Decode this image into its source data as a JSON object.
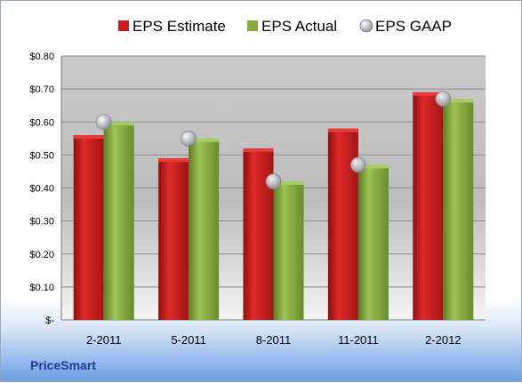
{
  "company": "PriceSmart",
  "chart_data": {
    "type": "bar",
    "categories": [
      "2-2011",
      "5-2011",
      "8-2011",
      "11-2011",
      "2-2012"
    ],
    "series": [
      {
        "name": "EPS Estimate",
        "kind": "bar",
        "color": "#c81e1e",
        "values": [
          0.56,
          0.49,
          0.52,
          0.58,
          0.69
        ]
      },
      {
        "name": "EPS Actual",
        "kind": "bar",
        "color": "#86ac3f",
        "values": [
          0.6,
          0.55,
          0.42,
          0.47,
          0.67
        ]
      },
      {
        "name": "EPS GAAP",
        "kind": "marker",
        "color": "#b9bcc4",
        "values": [
          0.6,
          0.55,
          0.42,
          0.47,
          0.67
        ]
      }
    ],
    "ylim": [
      0,
      0.8
    ],
    "yticks": [
      0,
      0.1,
      0.2,
      0.3,
      0.4,
      0.5,
      0.6,
      0.7,
      0.8
    ],
    "ytick_labels": [
      "$-",
      "$0.10",
      "$0.20",
      "$0.30",
      "$0.40",
      "$0.50",
      "$0.60",
      "$0.70",
      "$0.80"
    ],
    "grid": true,
    "legend_position": "top"
  }
}
